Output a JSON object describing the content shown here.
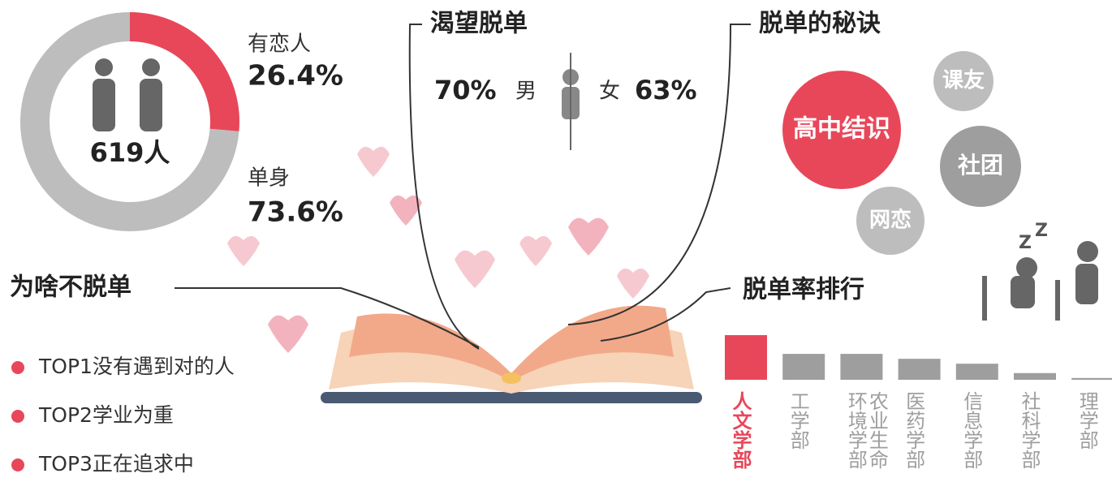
{
  "chart_data": [
    {
      "type": "donut",
      "center_label": "619人",
      "categories": [
        "有恋人",
        "单身"
      ],
      "values": [
        26.4,
        73.6
      ],
      "value_labels": [
        "26.4%",
        "73.6%"
      ],
      "colors": [
        "#e8475a",
        "#bdbdbd"
      ]
    },
    {
      "type": "bar",
      "title": "脱单率排行",
      "categories": [
        "人文学部",
        "工学部",
        "农业生命环境学部",
        "医药学部",
        "信息学部",
        "社科学部",
        "理学部"
      ],
      "values": [
        100,
        58,
        58,
        47,
        36,
        15,
        4
      ],
      "ylim": [
        0,
        100
      ],
      "colors": [
        "#e8475a",
        "#9e9e9e",
        "#9e9e9e",
        "#9e9e9e",
        "#9e9e9e",
        "#9e9e9e",
        "#9e9e9e"
      ]
    }
  ],
  "desire": {
    "title": "渴望脱单",
    "male_value": "70%",
    "male": "男",
    "female": "女",
    "female_value": "63%"
  },
  "secrets": {
    "title": "脱单的秘诀",
    "items": [
      "高中结识",
      "课友",
      "社团",
      "网恋"
    ]
  },
  "reasons": {
    "title": "为啥不脱单",
    "items": [
      "TOP1没有遇到对的人",
      "TOP2学业为重",
      "TOP3正在追求中"
    ]
  }
}
